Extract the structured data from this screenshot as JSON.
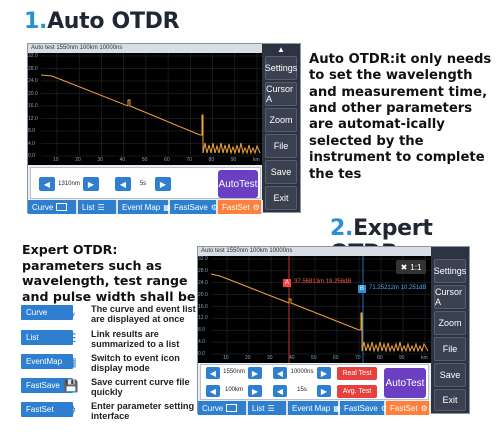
{
  "auto": {
    "heading_num": "1.",
    "heading_text": "Auto OTDR",
    "description": "Auto OTDR:it only needs to set the wavelength and measurement time, and other parameters are automat-ically selected by the instrument to complete the tes",
    "topbar": "Auto test  1550nm  100km  10000ns",
    "y_ticks": [
      "32.0",
      "28.0",
      "24.0",
      "20.0",
      "16.0",
      "12.0",
      "8.0",
      "4.0",
      "0.0"
    ],
    "x_ticks": [
      "10",
      "20",
      "30",
      "40",
      "50",
      "60",
      "70",
      "80",
      "90",
      "km"
    ],
    "sidebar": [
      "Settings",
      "Cursor A",
      "Zoom",
      "File",
      "Save",
      "Exit"
    ],
    "wavelength": "1310nm",
    "time": "5s",
    "autotest_label": "AutoTest",
    "tabs": [
      "Curve",
      "List",
      "Event Map",
      "FastSave",
      "FastSet"
    ]
  },
  "expert": {
    "heading_num": "2.",
    "heading_text": "Expert OTDR",
    "description": "Expert OTDR: parameters such as wavelength, test range and pulse width shall be set",
    "topbar": "Auto test  1550nm  100km  10000ns",
    "y_ticks": [
      "32.0",
      "28.0",
      "24.0",
      "20.0",
      "16.0",
      "12.0",
      "8.0",
      "4.0",
      "0.0"
    ],
    "x_ticks": [
      "10",
      "20",
      "30",
      "40",
      "50",
      "60",
      "70",
      "80",
      "90",
      "km"
    ],
    "marker_a": "37.56813m  19.256dB",
    "marker_b": "71.25212m  10.251dB",
    "marker_a_letter": "A",
    "marker_b_letter": "B",
    "zoom_label": "1:1",
    "sidebar": [
      "Settings",
      "Cursor A",
      "Zoom",
      "File",
      "Save",
      "Exit"
    ],
    "wavelength": "1550nm",
    "range": "100km",
    "pulse": "10000ns",
    "time": "15s",
    "realtest": "Real Test",
    "avgtest": "Avg. Test",
    "autotest_label": "AutoTest",
    "tabs": [
      "Curve",
      "List",
      "Event Map",
      "FastSave",
      "FastSet"
    ]
  },
  "legend": [
    {
      "button": "Curve",
      "icon": "curve-icon",
      "text": "The curve and event list are displayed at once"
    },
    {
      "button": "List",
      "icon": "list-icon",
      "text": "Link results are summarized to a list"
    },
    {
      "button": "EventMap",
      "icon": "event-map-icon",
      "text": "Switch to event icon display mode"
    },
    {
      "button": "FastSave",
      "icon": "fast-save-icon",
      "text": "Save current curve file quickly"
    },
    {
      "button": "FastSet",
      "icon": "gear-icon",
      "text": "Enter parameter setting interface"
    }
  ],
  "colors": {
    "accent": "#2a8fd6",
    "button_blue": "#2e7fd0",
    "trace": "#f2a33a",
    "autotest": "#6a3fc2",
    "fastset": "#ff7f3b",
    "red": "#e8413d"
  }
}
